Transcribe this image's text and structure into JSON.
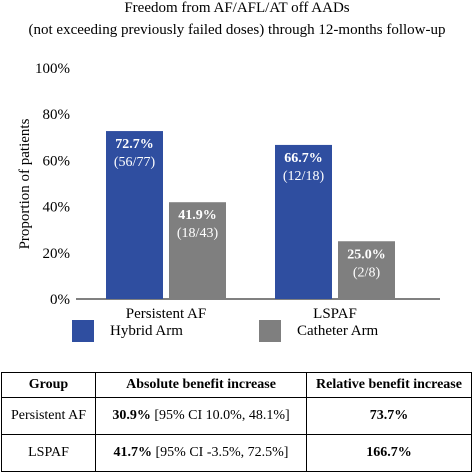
{
  "chart_data": {
    "type": "bar",
    "title_lines": [
      "Freedom from AF/AFL/AT off AADs",
      "(not exceeding previously failed doses) through 12-months follow-up"
    ],
    "ylabel": "Proportion of patients",
    "ylim": [
      0,
      100
    ],
    "yticks": [
      "0%",
      "20%",
      "40%",
      "60%",
      "80%",
      "100%"
    ],
    "ytick_values": [
      0,
      20,
      40,
      60,
      80,
      100
    ],
    "grid": false,
    "categories": [
      "Persistent AF",
      "LSPAF"
    ],
    "series": [
      {
        "name": "Hybrid Arm",
        "color": "#2f4ea0",
        "values": [
          72.7,
          66.7
        ],
        "value_labels": [
          "72.7%",
          "66.7%"
        ],
        "count_labels": [
          "(56/77)",
          "(12/18)"
        ]
      },
      {
        "name": "Catheter Arm",
        "color": "#7f7f7f",
        "values": [
          41.9,
          25.0
        ],
        "value_labels": [
          "41.9%",
          "25.0%"
        ],
        "count_labels": [
          "(18/43)",
          "(2/8)"
        ]
      }
    ],
    "legend_position": "bottom"
  },
  "table": {
    "headers": [
      "Group",
      "Absolute benefit increase",
      "Relative benefit increase"
    ],
    "rows": [
      {
        "group": "Persistent AF",
        "abs_value": "30.9%",
        "abs_ci": " [95% CI 10.0%, 48.1%]",
        "rel": "73.7%"
      },
      {
        "group": "LSPAF",
        "abs_value": "41.7%",
        "abs_ci": " [95% CI -3.5%, 72.5%]",
        "rel": "166.7%"
      }
    ]
  }
}
